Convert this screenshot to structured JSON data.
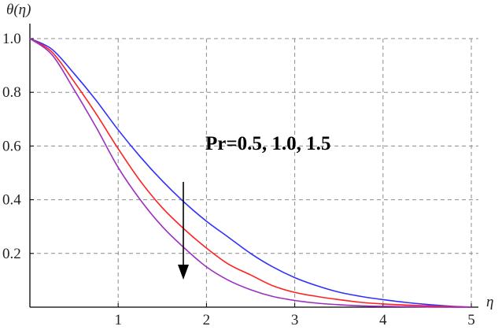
{
  "chart_data": {
    "type": "line",
    "title": "",
    "xlabel": "η",
    "ylabel": "θ(η)",
    "xlim": [
      0,
      5
    ],
    "ylim": [
      0,
      1.0
    ],
    "x_ticks": [
      "1",
      "2",
      "3",
      "4",
      "5"
    ],
    "y_ticks": [
      "0.2",
      "0.4",
      "0.6",
      "0.8",
      "1.0"
    ],
    "grid": true,
    "annotation": "Pr=0.5, 1.0, 1.5",
    "arrow_direction": "down",
    "series": [
      {
        "color": "#3030ff",
        "x": [
          0,
          0.25,
          0.5,
          0.75,
          1.0,
          1.25,
          1.5,
          1.75,
          2.0,
          2.25,
          2.5,
          2.75,
          3.0,
          3.25,
          3.5,
          3.75,
          4.0,
          4.25,
          4.5,
          4.75,
          5.0
        ],
        "y": [
          1.0,
          0.96,
          0.87,
          0.77,
          0.66,
          0.56,
          0.47,
          0.39,
          0.32,
          0.26,
          0.2,
          0.15,
          0.11,
          0.08,
          0.056,
          0.04,
          0.028,
          0.018,
          0.01,
          0.004,
          0.0
        ]
      },
      {
        "color": "#ff2020",
        "x": [
          0,
          0.25,
          0.5,
          0.75,
          1.0,
          1.25,
          1.5,
          1.75,
          2.0,
          2.25,
          2.5,
          2.75,
          3.0,
          3.25,
          3.5,
          3.75,
          4.0,
          4.25,
          4.5,
          4.75,
          5.0
        ],
        "y": [
          1.0,
          0.95,
          0.84,
          0.72,
          0.59,
          0.47,
          0.37,
          0.29,
          0.22,
          0.16,
          0.12,
          0.08,
          0.055,
          0.04,
          0.028,
          0.018,
          0.012,
          0.008,
          0.005,
          0.002,
          0.0
        ]
      },
      {
        "color": "#9b30c0",
        "x": [
          0,
          0.25,
          0.5,
          0.75,
          1.0,
          1.25,
          1.5,
          1.75,
          2.0,
          2.25,
          2.5,
          2.75,
          3.0,
          3.25,
          3.5,
          3.75,
          4.0,
          4.25,
          4.5,
          4.75,
          5.0
        ],
        "y": [
          1.0,
          0.94,
          0.81,
          0.67,
          0.52,
          0.4,
          0.3,
          0.22,
          0.15,
          0.1,
          0.065,
          0.04,
          0.025,
          0.015,
          0.009,
          0.005,
          0.003,
          0.002,
          0.001,
          0.0,
          0.0
        ]
      }
    ]
  }
}
